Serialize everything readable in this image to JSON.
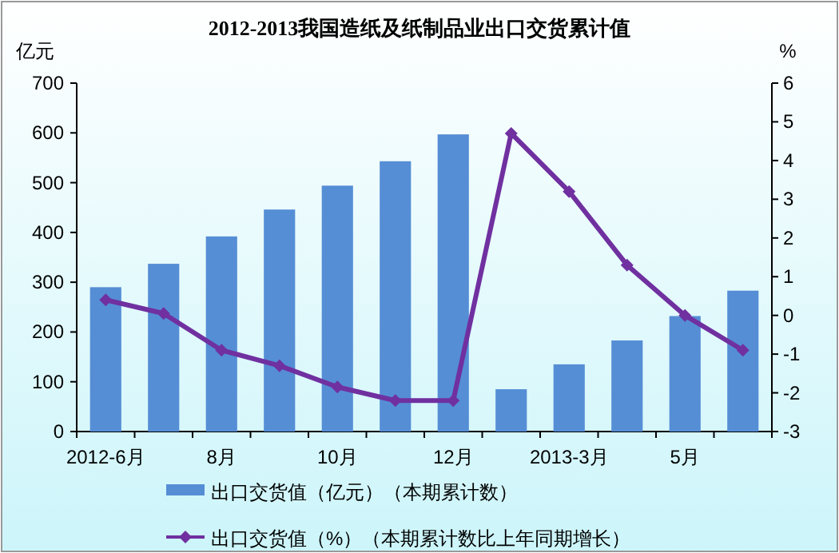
{
  "chart_data": {
    "type": "bar",
    "title": "2012-2013我国造纸及纸制品业出口交货累计值",
    "ylabel": "亿元",
    "y2label": "%",
    "categories": [
      "2012-6月",
      null,
      "8月",
      null,
      "10月",
      null,
      "12月",
      null,
      "2013-3月",
      null,
      "5月",
      null
    ],
    "series": [
      {
        "name": "出口交货值（亿元）（本期累计数）",
        "color": "#558ed5",
        "values": [
          290,
          337,
          392,
          446,
          494,
          543,
          597,
          85,
          135,
          183,
          232,
          283
        ]
      },
      {
        "name": "出口交货值（%）（本期累计数比上年同期增长）",
        "type": "line",
        "axis": "y2",
        "color": "#7030a0",
        "marker": "diamond",
        "values": [
          0.4,
          0.05,
          -0.9,
          -1.3,
          -1.85,
          -2.2,
          -2.2,
          4.7,
          3.2,
          1.3,
          0.0,
          -0.9
        ]
      }
    ],
    "ylim": [
      0,
      700
    ],
    "yticks": [
      0,
      100,
      200,
      300,
      400,
      500,
      600,
      700
    ],
    "y2lim": [
      -3,
      6
    ],
    "y2ticks": [
      -3,
      -2,
      -1,
      0,
      1,
      2,
      3,
      4,
      5,
      6
    ],
    "grid": false,
    "legend": "bottom"
  }
}
